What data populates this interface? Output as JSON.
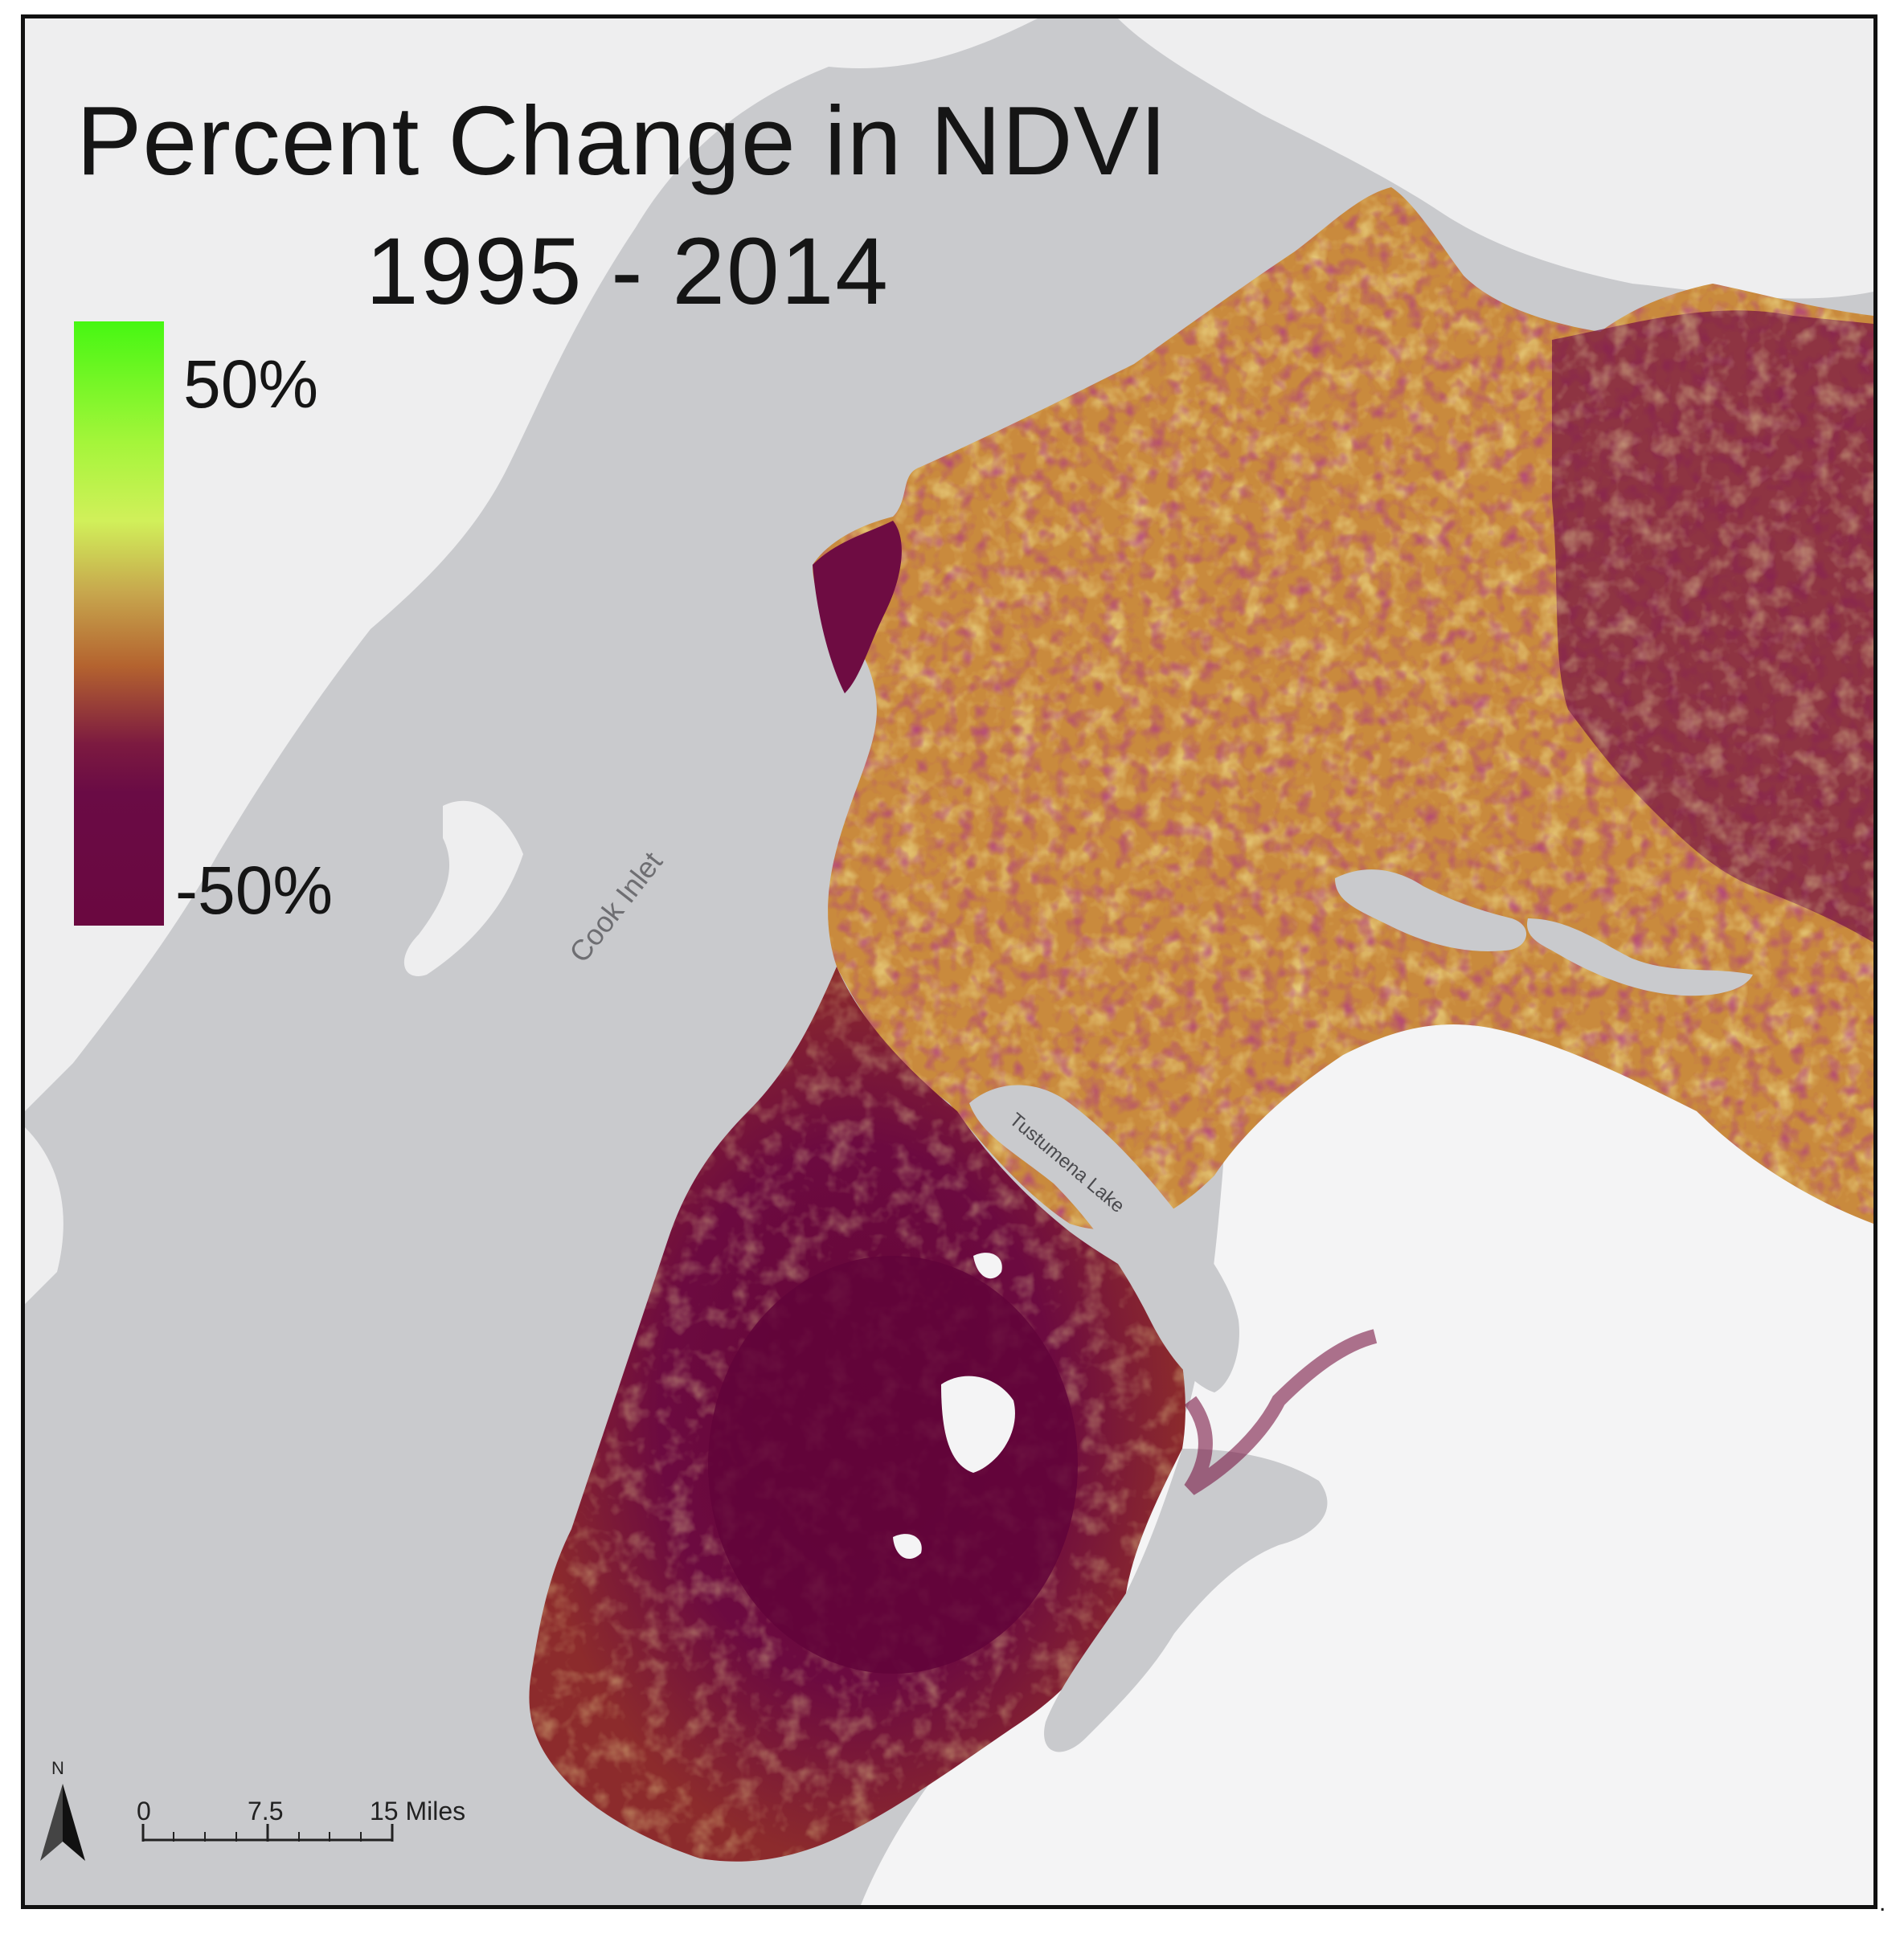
{
  "title": {
    "line1": "Percent Change in NDVI",
    "line2": "1995 - 2014"
  },
  "legend": {
    "max_label": "50%",
    "min_label": "-50%",
    "colors": [
      "#46f712",
      "#a4f53a",
      "#d1f05a",
      "#c7a64d",
      "#b4632f",
      "#7c1a40",
      "#6a0840"
    ]
  },
  "labels": {
    "cook_inlet": "Cook Inlet",
    "tustumena_lake": "Tustumena Lake"
  },
  "north_arrow": {
    "letter": "N"
  },
  "scale_bar": {
    "tick0": "0",
    "tick1": "7.5",
    "tick2": "15 Miles"
  },
  "colors": {
    "water": "#c9cacd",
    "land_base": "#eeeeef",
    "ice": "#f4f4f5",
    "decrease": "#6a0840",
    "neutral": "#c7863a",
    "increase": "#bfe04a"
  },
  "trailing_mark": "."
}
